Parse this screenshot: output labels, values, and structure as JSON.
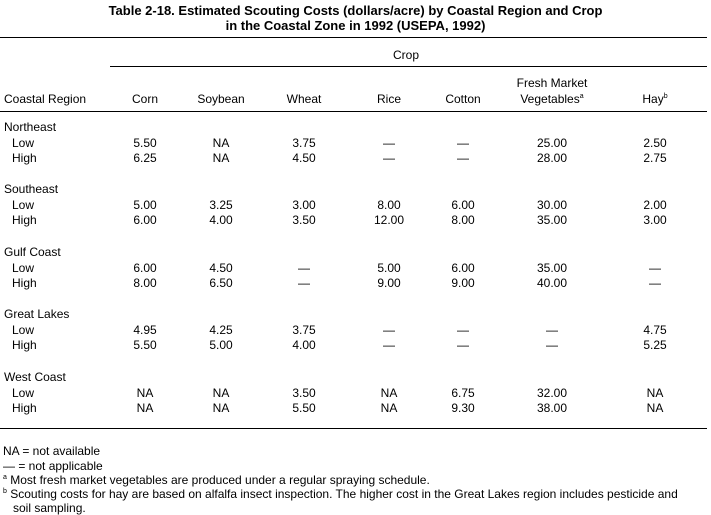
{
  "title": {
    "line1": "Table 2-18.  Estimated Scouting Costs (dollars/acre) by Coastal Region and Crop",
    "line2": "in the Coastal Zone in 1992 (USEPA, 1992)"
  },
  "header": {
    "spanner": "Crop",
    "region_col": "Coastal Region",
    "fresh_line1": "Fresh Market",
    "crops": [
      {
        "label": "Corn",
        "sup": ""
      },
      {
        "label": "Soybean",
        "sup": ""
      },
      {
        "label": "Wheat",
        "sup": ""
      },
      {
        "label": "Rice",
        "sup": ""
      },
      {
        "label": "Cotton",
        "sup": ""
      },
      {
        "label": "Vegetables",
        "sup": "a"
      },
      {
        "label": "Hay",
        "sup": "b"
      }
    ]
  },
  "regions": [
    {
      "name": "Northeast",
      "rows": [
        {
          "label": "Low",
          "values": [
            "5.50",
            "NA",
            "3.75",
            "—",
            "—",
            "25.00",
            "2.50"
          ]
        },
        {
          "label": "High",
          "values": [
            "6.25",
            "NA",
            "4.50",
            "—",
            "—",
            "28.00",
            "2.75"
          ]
        }
      ]
    },
    {
      "name": "Southeast",
      "rows": [
        {
          "label": "Low",
          "values": [
            "5.00",
            "3.25",
            "3.00",
            "8.00",
            "6.00",
            "30.00",
            "2.00"
          ]
        },
        {
          "label": "High",
          "values": [
            "6.00",
            "4.00",
            "3.50",
            "12.00",
            "8.00",
            "35.00",
            "3.00"
          ]
        }
      ]
    },
    {
      "name": "Gulf Coast",
      "rows": [
        {
          "label": "Low",
          "values": [
            "6.00",
            "4.50",
            "—",
            "5.00",
            "6.00",
            "35.00",
            "—"
          ]
        },
        {
          "label": "High",
          "values": [
            "8.00",
            "6.50",
            "—",
            "9.00",
            "9.00",
            "40.00",
            "—"
          ]
        }
      ]
    },
    {
      "name": "Great Lakes",
      "rows": [
        {
          "label": "Low",
          "values": [
            "4.95",
            "4.25",
            "3.75",
            "—",
            "—",
            "—",
            "4.75"
          ]
        },
        {
          "label": "High",
          "values": [
            "5.50",
            "5.00",
            "4.00",
            "—",
            "—",
            "—",
            "5.25"
          ]
        }
      ]
    },
    {
      "name": "West Coast",
      "rows": [
        {
          "label": "Low",
          "values": [
            "NA",
            "NA",
            "3.50",
            "NA",
            "6.75",
            "32.00",
            "NA"
          ]
        },
        {
          "label": "High",
          "values": [
            "NA",
            "NA",
            "5.50",
            "NA",
            "9.30",
            "38.00",
            "NA"
          ]
        }
      ]
    }
  ],
  "footnotes": {
    "na": "NA = not available",
    "dash": "— = not applicable",
    "a_mark": "a",
    "a": "Most fresh market vegetables are produced under a regular spraying schedule.",
    "b_mark": "b",
    "b_line1": "Scouting costs for hay are based on alfalfa insect inspection.  The higher cost in the Great Lakes region includes pesticide and",
    "b_line2": "soil sampling."
  }
}
